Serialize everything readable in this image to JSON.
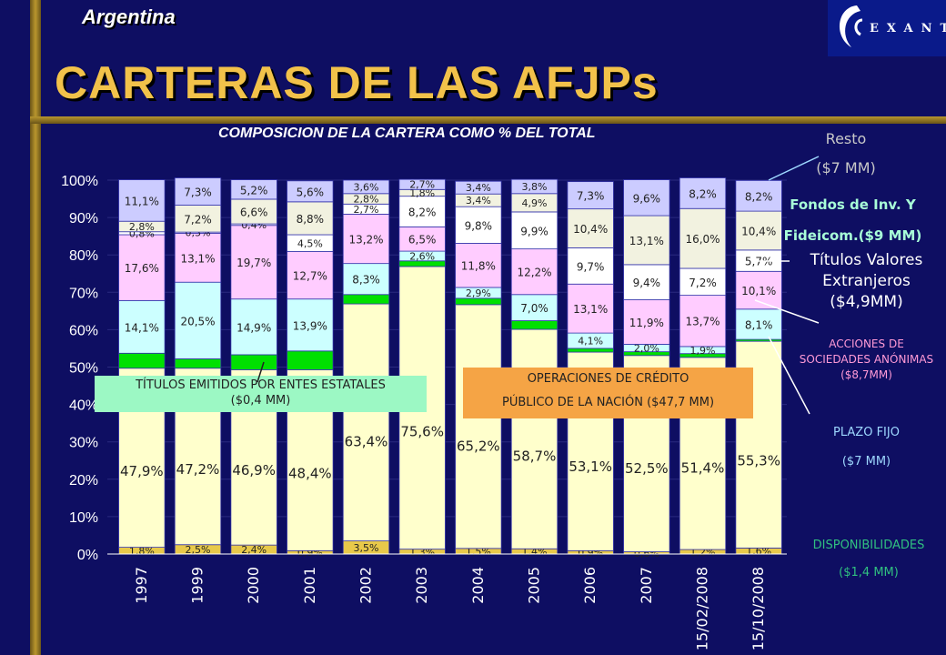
{
  "header": {
    "country": "Argentina",
    "title": "CARTERAS DE LAS AFJPs",
    "subtitle": "COMPOSICION DE LA CARTERA COMO % DEL TOTAL",
    "logo_text": "EXANTE"
  },
  "colors": {
    "background": "#0e0e62",
    "title": "#f2c24a",
    "disponibilidades": "#e8c94a",
    "titulos_estatales": "#ffffcc",
    "operaciones_credito": "#00e000",
    "plazo_fijo": "#ccffff",
    "acciones": "#ffccff",
    "titulos_extranjeros": "#ffffff",
    "fondos": "#f2f2e0",
    "resto": "#ccccff"
  },
  "annotations": {
    "resto": [
      "Resto",
      "($7 MM)"
    ],
    "fondos": [
      "Fondos de Inv. Y",
      "Fideicom.($9 MM)"
    ],
    "titulos": [
      "Títulos Valores",
      "Extranjeros",
      "($4,9MM)"
    ],
    "acciones": [
      "ACCIONES DE",
      "SOCIEDADES ANÓNIMAS",
      "($8,7MM)"
    ],
    "plazo": [
      "PLAZO FIJO",
      "($7 MM)"
    ],
    "disp": [
      "DISPONIBILIDADES",
      "($1,4 MM)"
    ],
    "titulos_estatales": [
      "TÍTULOS EMITIDOS POR ENTES ESTATALES",
      "($0,4 MM)"
    ],
    "operaciones": [
      "OPERACIONES DE CRÉDITO",
      "PÚBLICO DE LA NACIÓN ($47,7 MM)"
    ]
  },
  "chart_data": {
    "type": "bar",
    "stacked": true,
    "title": "COMPOSICION DE LA CARTERA COMO % DEL TOTAL",
    "ylim": [
      0,
      100
    ],
    "yticks": [
      "0%",
      "10%",
      "20%",
      "30%",
      "40%",
      "50%",
      "60%",
      "70%",
      "80%",
      "90%",
      "100%"
    ],
    "categories": [
      "1997",
      "1999",
      "2000",
      "2001",
      "2002",
      "2003",
      "2004",
      "2005",
      "2006",
      "2007",
      "15/02/2008",
      "15/10/2008"
    ],
    "series": [
      {
        "key": "disponibilidades",
        "values": [
          1.8,
          2.5,
          2.4,
          0.9,
          3.5,
          1.3,
          1.5,
          1.4,
          0.9,
          0.6,
          1.2,
          1.6
        ],
        "labels": [
          "1,8%",
          "2,5%",
          "2,4%",
          "0,9%",
          "3,5%",
          "1,3%",
          "1,5%",
          "1,4%",
          "0,9%",
          "0,6%",
          "1,2%",
          "1,6%"
        ]
      },
      {
        "key": "titulos_estatales",
        "values": [
          47.9,
          47.2,
          46.9,
          48.4,
          63.4,
          75.6,
          65.2,
          58.7,
          53.1,
          52.5,
          51.4,
          55.3
        ],
        "labels": [
          "47,9%",
          "47,2%",
          "46,9%",
          "48,4%",
          "63,4%",
          "75,6%",
          "65,2%",
          "58,7%",
          "53,1%",
          "52,5%",
          "51,4%",
          "55,3%"
        ]
      },
      {
        "key": "operaciones_credito",
        "values": [
          4.0,
          2.5,
          4.0,
          5.0,
          2.5,
          1.5,
          1.7,
          2.3,
          1.0,
          1.0,
          1.0,
          0.5
        ],
        "labels": [
          "",
          "",
          "",
          "",
          "",
          "",
          "",
          "",
          "",
          "",
          "",
          ""
        ]
      },
      {
        "key": "plazo_fijo",
        "values": [
          14.1,
          20.5,
          14.9,
          13.9,
          8.3,
          2.6,
          2.9,
          7.0,
          4.1,
          2.0,
          1.9,
          8.1
        ],
        "labels": [
          "14,1%",
          "20,5%",
          "14,9%",
          "13,9%",
          "8,3%",
          "2,6%",
          "2,9%",
          "7,0%",
          "4,1%",
          "2,0%",
          "1,9%",
          "8,1%"
        ]
      },
      {
        "key": "acciones",
        "values": [
          17.6,
          13.1,
          19.7,
          12.7,
          13.2,
          6.5,
          11.8,
          12.2,
          13.1,
          11.9,
          13.7,
          10.1
        ],
        "labels": [
          "17,6%",
          "13,1%",
          "19,7%",
          "12,7%",
          "13,2%",
          "6,5%",
          "11,8%",
          "12,2%",
          "13,1%",
          "11,9%",
          "13,7%",
          "10,1%"
        ]
      },
      {
        "key": "titulos_extranjeros",
        "values": [
          0.8,
          0.3,
          0.4,
          4.5,
          2.7,
          8.2,
          9.8,
          9.9,
          9.7,
          9.4,
          7.2,
          5.7
        ],
        "labels": [
          "0,8%",
          "0,3%",
          "0,4%",
          "4,5%",
          "2,7%",
          "8,2%",
          "9,8%",
          "9,9%",
          "9,7%",
          "9,4%",
          "7,2%",
          "5,7%"
        ]
      },
      {
        "key": "fondos",
        "values": [
          2.8,
          7.2,
          6.6,
          8.8,
          2.8,
          1.8,
          3.4,
          4.9,
          10.4,
          13.1,
          16.0,
          10.4
        ],
        "labels": [
          "2,8%",
          "7,2%",
          "6,6%",
          "8,8%",
          "2,8%",
          "1,8%",
          "3,4%",
          "4,9%",
          "10,4%",
          "13,1%",
          "16,0%",
          "10,4%"
        ]
      },
      {
        "key": "resto",
        "values": [
          11.1,
          7.3,
          5.2,
          5.6,
          3.6,
          2.7,
          3.4,
          3.8,
          7.3,
          9.6,
          8.2,
          8.2
        ],
        "labels": [
          "11,1%",
          "7,3%",
          "5,2%",
          "5,6%",
          "3,6%",
          "2,7%",
          "3,4%",
          "3,8%",
          "7,3%",
          "9,6%",
          "8,2%",
          "8,2%"
        ]
      }
    ]
  }
}
